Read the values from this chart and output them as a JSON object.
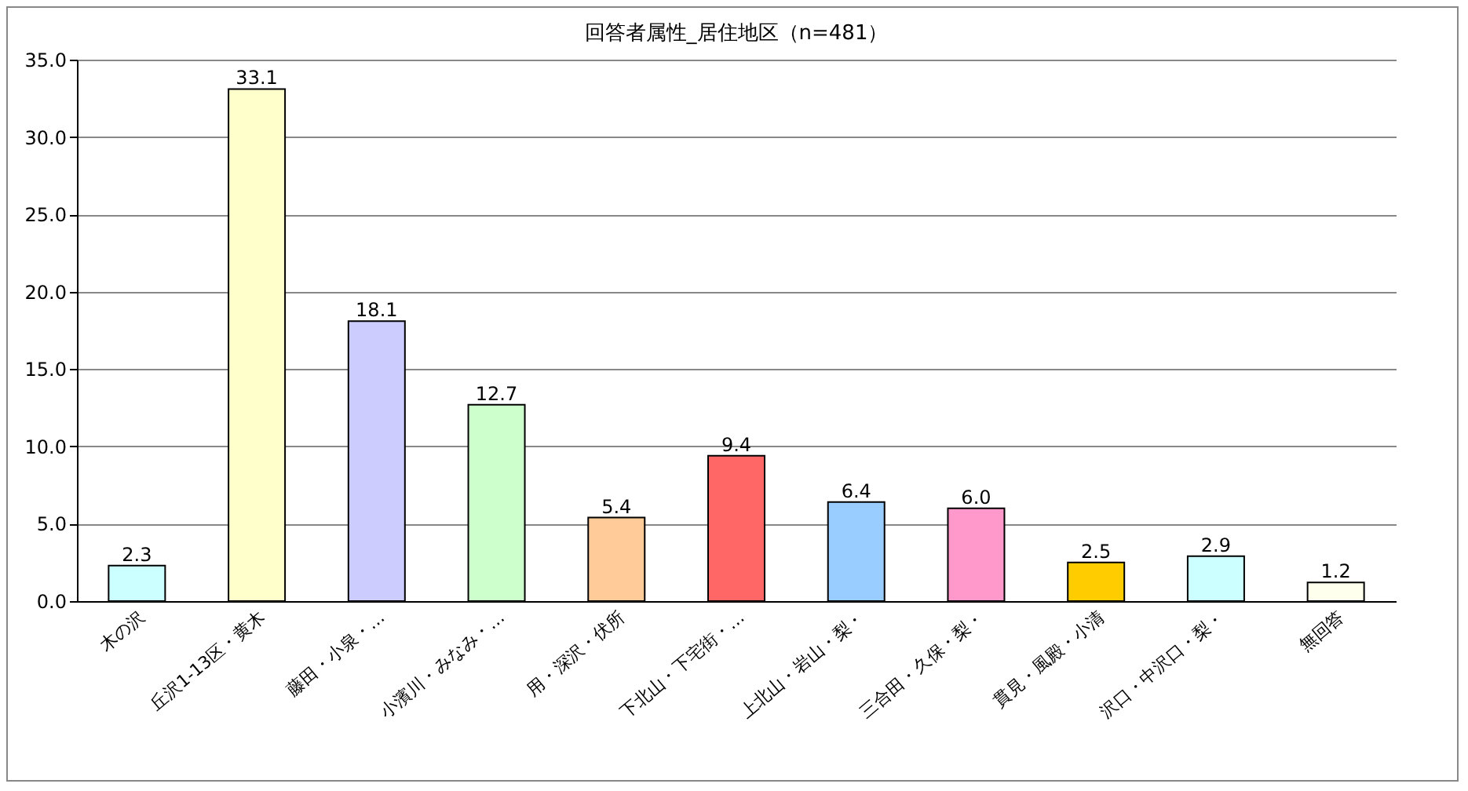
{
  "chart_data": {
    "type": "bar",
    "title": "回答者属性_居住地区（n=481）",
    "categories": [
      "木の沢",
      "丘沢1-13区・黄木",
      "藤田・小泉・…",
      "小濱川・みなみ・…",
      "用・深沢・伏所",
      "下北山・下宅街・…",
      "上北山・岩山・梨・",
      "三合田・久保・梨・",
      "貫見・風殿・小清",
      "沢口・中沢口・梨・",
      "無回答"
    ],
    "values": [
      2.3,
      33.1,
      18.1,
      12.7,
      5.4,
      9.4,
      6.4,
      6.0,
      2.5,
      2.9,
      1.2
    ],
    "colors": [
      "#ccffff",
      "#ffffcc",
      "#ccccff",
      "#ccffcc",
      "#ffcc99",
      "#ff6666",
      "#99ccff",
      "#ff99cc",
      "#ffcc00",
      "#ccffff",
      "#ffffee"
    ],
    "ylim": [
      0,
      35
    ],
    "yticks": [
      {
        "value": 0,
        "label": "0.0"
      },
      {
        "value": 5,
        "label": "5.0"
      },
      {
        "value": 10,
        "label": "10.0"
      },
      {
        "value": 15,
        "label": "15.0"
      },
      {
        "value": 20,
        "label": "20.0"
      },
      {
        "value": 25,
        "label": "25.0"
      },
      {
        "value": 30,
        "label": "30.0"
      },
      {
        "value": 35,
        "label": "35.0"
      }
    ],
    "value_labels": [
      "2.3",
      "33.1",
      "18.1",
      "12.7",
      "5.4",
      "9.4",
      "6.4",
      "6.0",
      "2.5",
      "2.9",
      "1.2"
    ],
    "grid": "y"
  }
}
